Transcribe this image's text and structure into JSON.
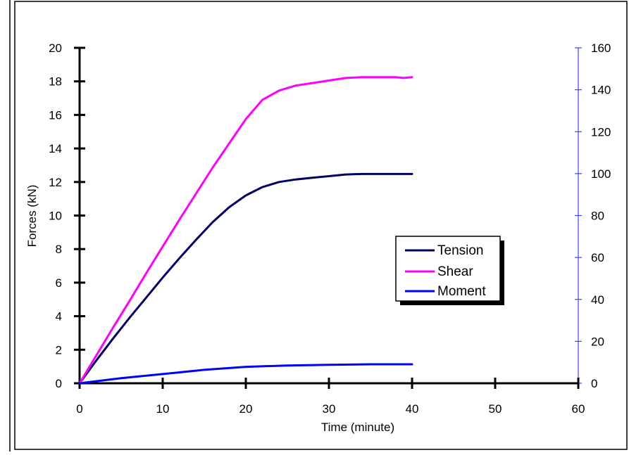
{
  "chart_data": {
    "type": "line",
    "title": "",
    "xlabel": "Time (minute)",
    "ylabel": "Forces (kN)",
    "y2label": "",
    "xlim": [
      0,
      60
    ],
    "ylim": [
      0,
      20
    ],
    "y2lim": [
      0,
      160
    ],
    "x_ticks": [
      0,
      10,
      20,
      30,
      40,
      50,
      60
    ],
    "y_ticks": [
      0,
      2,
      4,
      6,
      8,
      10,
      12,
      14,
      16,
      18,
      20
    ],
    "y2_ticks": [
      0,
      20,
      40,
      60,
      80,
      100,
      120,
      140,
      160
    ],
    "grid": false,
    "legend_position": "center-right",
    "colors": {
      "right_axis": "#4040ff",
      "left_axis": "#000000"
    },
    "series": [
      {
        "name": "Tension",
        "color": "#000066",
        "axis": "left",
        "x": [
          0,
          2,
          4,
          6,
          8,
          10,
          12,
          14,
          16,
          18,
          20,
          22,
          24,
          26,
          28,
          30,
          32,
          34,
          36,
          38,
          40
        ],
        "y": [
          0,
          1.35,
          2.65,
          3.9,
          5.1,
          6.3,
          7.45,
          8.55,
          9.6,
          10.5,
          11.2,
          11.7,
          12.0,
          12.15,
          12.25,
          12.35,
          12.45,
          12.48,
          12.48,
          12.48,
          12.48
        ]
      },
      {
        "name": "Shear",
        "color": "#ff00ff",
        "axis": "left",
        "x": [
          0,
          2,
          4,
          6,
          8,
          10,
          12,
          14,
          16,
          18,
          20,
          22,
          24,
          26,
          28,
          30,
          32,
          34,
          36,
          38,
          39,
          40
        ],
        "y": [
          0,
          1.65,
          3.3,
          4.9,
          6.55,
          8.15,
          9.75,
          11.3,
          12.85,
          14.3,
          15.75,
          16.9,
          17.45,
          17.75,
          17.9,
          18.05,
          18.2,
          18.25,
          18.25,
          18.25,
          18.2,
          18.25
        ]
      },
      {
        "name": "Moment",
        "color": "#0000ff",
        "axis": "left",
        "x": [
          0,
          5,
          10,
          15,
          20,
          25,
          30,
          35,
          40
        ],
        "y": [
          0,
          0.3,
          0.55,
          0.8,
          0.98,
          1.06,
          1.1,
          1.13,
          1.13
        ]
      }
    ]
  }
}
